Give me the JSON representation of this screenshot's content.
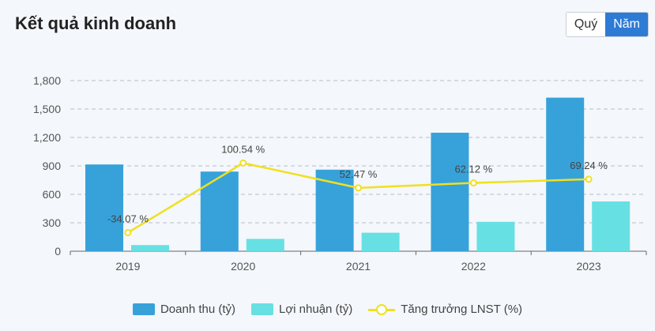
{
  "header": {
    "title": "Kết quả kinh doanh",
    "toggle": [
      {
        "label": "Quý",
        "active": false
      },
      {
        "label": "Năm",
        "active": true
      }
    ]
  },
  "colors": {
    "revenue": "#37a2da",
    "profit": "#67e0e3",
    "growth": "#f0e020"
  },
  "chart_data": {
    "type": "bar",
    "categories": [
      "2019",
      "2020",
      "2021",
      "2022",
      "2023"
    ],
    "series": [
      {
        "name": "Doanh thu (tỷ)",
        "type": "bar",
        "values": [
          915,
          840,
          860,
          1250,
          1620
        ]
      },
      {
        "name": "Lợi nhuận (tỷ)",
        "type": "bar",
        "values": [
          65,
          130,
          195,
          310,
          525
        ]
      },
      {
        "name": "Tăng trưởng LNST (%)",
        "type": "line",
        "values": [
          -34.07,
          100.54,
          52.47,
          62.12,
          69.24
        ],
        "labels": [
          "-34.07 %",
          "100.54 %",
          "52.47 %",
          "62.12 %",
          "69.24 %"
        ]
      }
    ],
    "ylim": [
      0,
      1800
    ],
    "yticks": [
      0,
      300,
      600,
      900,
      1200,
      1500,
      1800
    ],
    "ytick_labels": [
      "0",
      "300",
      "600",
      "900",
      "1,200",
      "1,500",
      "1,800"
    ],
    "grid": true,
    "legend_position": "bottom-center"
  }
}
